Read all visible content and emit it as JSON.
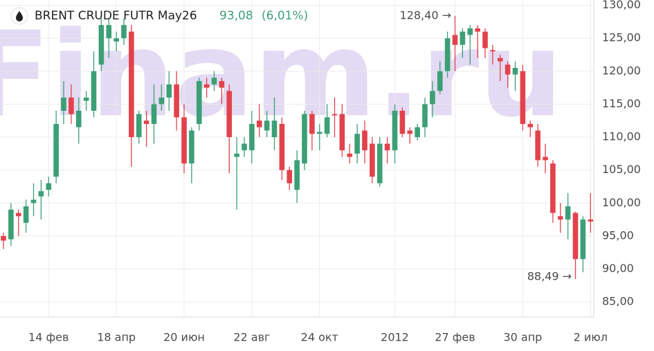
{
  "chart_data": {
    "type": "candlestick",
    "title": "BRENT CRUDE FUTR May26",
    "price_label": "93,08",
    "change_label": "(6,01%)",
    "watermark": "Finam.ru",
    "annotations": [
      "128,40 →",
      "88,49 →"
    ],
    "up_color": "#3c9f76",
    "down_color": "#e2424b",
    "grid": true,
    "categories": [
      null,
      null,
      null,
      null,
      null,
      null,
      "14 фев",
      null,
      null,
      null,
      null,
      null,
      null,
      null,
      null,
      "18 апр",
      null,
      null,
      null,
      null,
      null,
      null,
      null,
      null,
      "20 июн",
      null,
      null,
      null,
      null,
      null,
      null,
      null,
      null,
      "22 авг",
      null,
      null,
      null,
      null,
      null,
      null,
      null,
      null,
      "24 окт",
      null,
      null,
      null,
      null,
      null,
      null,
      null,
      null,
      null,
      "2012",
      null,
      null,
      null,
      null,
      null,
      null,
      null,
      "27 фев",
      null,
      null,
      null,
      null,
      null,
      null,
      null,
      null,
      "30 апр",
      null,
      null,
      null,
      null,
      null,
      null,
      null,
      null,
      "2 июл"
    ],
    "open": [
      95,
      94.5,
      98.5,
      97,
      100,
      101,
      102,
      104,
      114,
      116,
      111.5,
      115.5,
      114,
      121,
      125,
      124.5,
      125,
      126,
      110,
      112.5,
      112,
      115,
      116,
      118,
      113,
      106,
      112,
      118,
      118,
      118.5,
      117,
      107,
      108,
      108,
      112.5,
      111,
      110,
      112,
      105,
      102,
      106,
      113.5,
      110.5,
      110.5,
      113.5,
      113.5,
      107.5,
      107.5,
      111,
      109,
      103,
      109,
      108,
      114,
      111,
      110,
      111.5,
      115,
      117,
      120,
      125.5,
      124,
      125.5,
      126.5,
      126,
      123.2,
      122,
      121,
      119.5,
      120,
      112,
      111,
      107,
      106,
      98,
      97.5,
      98.5,
      91.5,
      97.5
    ],
    "high": [
      95.5,
      100,
      99,
      100.5,
      103,
      103.5,
      104,
      114,
      118.5,
      118,
      116,
      117,
      123,
      128,
      128,
      126,
      128,
      127,
      114,
      114,
      118,
      118,
      120,
      120,
      115,
      111.5,
      119,
      119,
      120,
      119,
      118,
      110,
      110,
      114,
      115,
      114,
      116,
      113,
      105.5,
      108,
      114,
      114,
      112,
      115,
      116,
      115,
      109,
      112,
      112.5,
      110,
      110,
      110,
      115,
      114.5,
      111.5,
      112,
      116,
      118.5,
      121.5,
      126,
      128.4,
      126.5,
      127,
      127,
      126.5,
      124,
      122.5,
      121.5,
      121.5,
      121,
      112.5,
      112,
      109,
      106.5,
      100,
      101.5,
      98.7,
      98,
      101.5
    ],
    "low": [
      93,
      93.5,
      95,
      95.5,
      98,
      97.5,
      101,
      103,
      112,
      112,
      109,
      114,
      113,
      120,
      122,
      123,
      124,
      105.5,
      109,
      108.5,
      109,
      114,
      114,
      111,
      104.5,
      103,
      111,
      116,
      117,
      115,
      104.5,
      99,
      107,
      106,
      110,
      110,
      108,
      103.5,
      102,
      100,
      105,
      108,
      108,
      110,
      110,
      107,
      106,
      106,
      106,
      103,
      102.5,
      106,
      106,
      110,
      109,
      109.5,
      110,
      113,
      116.5,
      119,
      120,
      122,
      121,
      122,
      122,
      121,
      118.5,
      117.5,
      117,
      111,
      110,
      105.5,
      104.5,
      97,
      95.5,
      94.5,
      88.49,
      89.5,
      95.5
    ],
    "close": [
      94.3,
      99,
      98,
      99.5,
      100.5,
      101.8,
      103,
      112,
      116,
      113.5,
      114,
      116,
      120,
      127,
      127,
      125,
      127,
      110,
      113.5,
      112,
      115,
      116,
      118,
      113,
      106,
      111,
      118.5,
      117.5,
      119,
      117.5,
      110,
      107.5,
      109,
      112,
      111.5,
      112.5,
      112.5,
      105,
      103,
      106.5,
      113.5,
      110.5,
      110.8,
      113,
      113.3,
      108,
      107,
      110.5,
      108,
      104,
      109,
      108,
      114,
      110.5,
      110.5,
      111.5,
      115,
      117,
      120,
      125,
      124,
      126,
      126.5,
      126,
      123.5,
      123,
      121.5,
      119.5,
      120.5,
      112,
      111.5,
      106.5,
      106.5,
      98.5,
      97.5,
      99.5,
      91.5,
      97.5,
      97.2
    ],
    "ylim": [
      82.7,
      130.8
    ],
    "yticks": [
      {
        "value": 85,
        "label": "85,00"
      },
      {
        "value": 90,
        "label": "90,00"
      },
      {
        "value": 95,
        "label": "95,00"
      },
      {
        "value": 100,
        "label": "100,00"
      },
      {
        "value": 105,
        "label": "105,00"
      },
      {
        "value": 110,
        "label": "110,00"
      },
      {
        "value": 115,
        "label": "115,00"
      },
      {
        "value": 120,
        "label": "120,00"
      },
      {
        "value": 125,
        "label": "125,00"
      },
      {
        "value": 130,
        "label": "130,00"
      }
    ]
  }
}
